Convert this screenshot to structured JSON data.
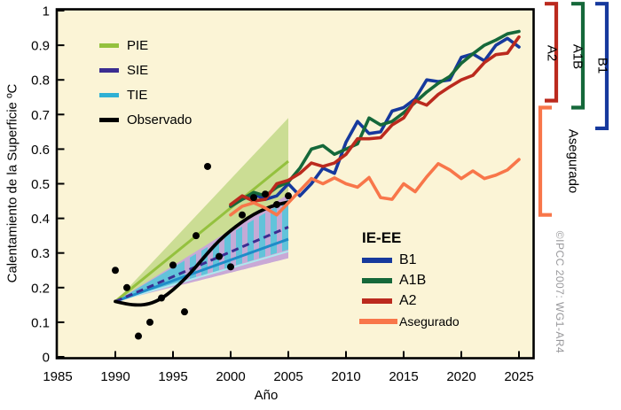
{
  "figure": {
    "copyright": "©IPCC 2007: WG1-AR4"
  },
  "axes": {
    "x_label": "Año",
    "y_label": "Calentamiento de la Superficie ºC",
    "x_ticks": [
      "1985",
      "1990",
      "1995",
      "2000",
      "2005",
      "2010",
      "2015",
      "2020",
      "2025"
    ],
    "y_ticks": [
      "1",
      "0.9",
      "0.8",
      "0.7",
      "0.6",
      "0.5",
      "0.4",
      "0.3",
      "0.2",
      "0.1",
      "0"
    ]
  },
  "legend_models": {
    "items": [
      {
        "label": "PIE",
        "color": "#94C13E"
      },
      {
        "label": "SIE",
        "color": "#3B2D91"
      },
      {
        "label": "TIE",
        "color": "#2FB0D4"
      },
      {
        "label": "Observado",
        "color": "#000000"
      }
    ]
  },
  "legend_scenarios": {
    "title": "IE-EE",
    "items": [
      {
        "label": "B1",
        "color": "#16399D"
      },
      {
        "label": "A1B",
        "color": "#15683A"
      },
      {
        "label": "A2",
        "color": "#BB2A1E"
      },
      {
        "label": "Asegurado",
        "color": "#F8764A"
      }
    ]
  },
  "right_brackets": [
    {
      "label": "A2",
      "color": "#BB2A1E",
      "value_range": [
        0.74,
        1.02
      ],
      "opens": "left"
    },
    {
      "label": "A1B",
      "color": "#15683A",
      "value_range": [
        0.72,
        1.02
      ],
      "opens": "left"
    },
    {
      "label": "B1",
      "color": "#16399D",
      "value_range": [
        0.66,
        1.02
      ],
      "opens": "left"
    },
    {
      "label": "Asegurado",
      "color": "#F8764A",
      "value_range": [
        0.41,
        0.72
      ],
      "opens": "right"
    }
  ],
  "chart_data": {
    "type": "line",
    "title": "",
    "xlabel": "Año",
    "ylabel": "Calentamiento de la Superficie ºC",
    "xlim": [
      1985,
      2026.3
    ],
    "ylim": [
      0,
      1.01
    ],
    "x_ticks": [
      1985,
      1990,
      1995,
      2000,
      2005,
      2010,
      2015,
      2020,
      2025
    ],
    "y_ticks": [
      0,
      0.1,
      0.2,
      0.3,
      0.4,
      0.5,
      0.6,
      0.7,
      0.8,
      0.9,
      1
    ],
    "plot_background": "#FBF4D6",
    "grid": false,
    "observed_annual_points": {
      "label": "Observado (anual)",
      "color": "#000000",
      "years": [
        1990,
        1991,
        1992,
        1993,
        1994,
        1995,
        1996,
        1997,
        1998,
        1999,
        2000,
        2001,
        2002,
        2003,
        2004,
        2005
      ],
      "values": [
        0.25,
        0.2,
        0.06,
        0.1,
        0.17,
        0.265,
        0.13,
        0.35,
        0.55,
        0.29,
        0.26,
        0.41,
        0.46,
        0.47,
        0.44,
        0.465
      ]
    },
    "observed_smoothed_line": {
      "label": "Observado",
      "color": "#000000",
      "years": [
        1990,
        1991,
        1992,
        1993,
        1994,
        1995,
        1996,
        1997,
        1998,
        1999,
        2000,
        2001,
        2002,
        2003,
        2004,
        2005
      ],
      "values": [
        0.16,
        0.152,
        0.149,
        0.153,
        0.168,
        0.193,
        0.224,
        0.26,
        0.3,
        0.336,
        0.365,
        0.39,
        0.412,
        0.428,
        0.44,
        0.447
      ]
    },
    "commitment_fans": [
      {
        "label": "PIE",
        "fill": "#CBDD94",
        "line_color": "#94C13E",
        "line_style": "solid",
        "start": {
          "year": 1990,
          "value": 0.16
        },
        "end_year": 2005,
        "end_top": 0.69,
        "end_bottom": 0.43,
        "end_center": 0.565
      },
      {
        "label": "SIE",
        "fill": "#C9A9D6",
        "line_color": "#3B2D91",
        "line_style": "dashed",
        "pattern": "vertical-stripes",
        "stripes_from_year": 1995.5,
        "start": {
          "year": 1990,
          "value": 0.16
        },
        "end_year": 2005,
        "end_top": 0.47,
        "end_bottom": 0.285,
        "end_center": 0.375
      },
      {
        "label": "TIE",
        "fill": "#62C3DA",
        "line_color": "#1E8CC8",
        "line_style": "solid",
        "edge_color": "#AEE7EE",
        "start": {
          "year": 1990,
          "value": 0.16
        },
        "end_year": 2005,
        "end_top": 0.455,
        "end_bottom": 0.31,
        "end_center": 0.34
      }
    ],
    "scenario_series": {
      "start_year": 2000,
      "years": [
        2000,
        2001,
        2002,
        2003,
        2004,
        2005,
        2006,
        2007,
        2008,
        2009,
        2010,
        2011,
        2012,
        2013,
        2014,
        2015,
        2016,
        2017,
        2018,
        2019,
        2020,
        2021,
        2022,
        2023,
        2024,
        2025
      ],
      "series": [
        {
          "name": "B1",
          "color": "#16399D",
          "values": [
            0.435,
            0.455,
            0.47,
            0.455,
            0.465,
            0.5,
            0.465,
            0.5,
            0.545,
            0.53,
            0.62,
            0.68,
            0.645,
            0.65,
            0.71,
            0.72,
            0.745,
            0.8,
            0.795,
            0.8,
            0.865,
            0.875,
            0.855,
            0.9,
            0.92,
            0.895
          ]
        },
        {
          "name": "A1B",
          "color": "#15683A",
          "values": [
            0.435,
            0.455,
            0.475,
            0.465,
            0.49,
            0.505,
            0.545,
            0.6,
            0.61,
            0.585,
            0.6,
            0.615,
            0.69,
            0.67,
            0.68,
            0.705,
            0.735,
            0.765,
            0.79,
            0.81,
            0.848,
            0.875,
            0.9,
            0.915,
            0.933,
            0.94
          ]
        },
        {
          "name": "A2",
          "color": "#BB2A1E",
          "values": [
            0.44,
            0.465,
            0.45,
            0.455,
            0.5,
            0.51,
            0.53,
            0.56,
            0.55,
            0.56,
            0.585,
            0.63,
            0.63,
            0.633,
            0.67,
            0.69,
            0.74,
            0.727,
            0.758,
            0.78,
            0.8,
            0.813,
            0.85,
            0.873,
            0.877,
            0.924
          ]
        },
        {
          "name": "Asegurado",
          "color": "#F8764A",
          "values": [
            0.41,
            0.435,
            0.445,
            0.43,
            0.41,
            0.445,
            0.48,
            0.515,
            0.5,
            0.517,
            0.5,
            0.49,
            0.518,
            0.46,
            0.455,
            0.5,
            0.477,
            0.52,
            0.558,
            0.54,
            0.515,
            0.537,
            0.515,
            0.525,
            0.54,
            0.57
          ]
        }
      ]
    }
  }
}
